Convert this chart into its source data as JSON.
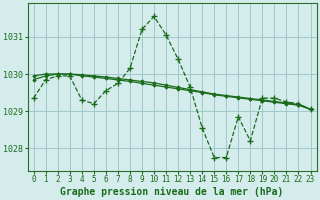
{
  "background_color": "#d4ecec",
  "grid_color": "#a0c8c8",
  "line_color": "#1a6b1a",
  "xlabel": "Graphe pression niveau de la mer (hPa)",
  "xlabel_fontsize": 7,
  "tick_fontsize": 6,
  "yticks": [
    1028,
    1029,
    1030,
    1031
  ],
  "ylim": [
    1027.4,
    1031.9
  ],
  "xlim": [
    -0.5,
    23.5
  ],
  "xticks": [
    0,
    1,
    2,
    3,
    4,
    5,
    6,
    7,
    8,
    9,
    10,
    11,
    12,
    13,
    14,
    15,
    16,
    17,
    18,
    19,
    20,
    21,
    22,
    23
  ],
  "line1_x": [
    0,
    1,
    2,
    3,
    4,
    5,
    6,
    7,
    8,
    9,
    10,
    11,
    12,
    13,
    14,
    15,
    16,
    17,
    18,
    19,
    20,
    21,
    22,
    23
  ],
  "line1_y": [
    1029.35,
    1029.85,
    1029.95,
    1029.95,
    1029.3,
    1029.2,
    1029.55,
    1029.75,
    1030.15,
    1031.2,
    1031.55,
    1031.05,
    1030.4,
    1029.65,
    1028.55,
    1027.75,
    1027.75,
    1028.85,
    1028.2,
    1029.35,
    1029.35,
    1029.25,
    1029.2,
    1029.05
  ],
  "line2_x": [
    0,
    1,
    2,
    3,
    4,
    5,
    6,
    7,
    8,
    9,
    10,
    11,
    12,
    13,
    14,
    15,
    16,
    17,
    18,
    19,
    20,
    21,
    22,
    23
  ],
  "line2_y": [
    1029.95,
    1030.0,
    1030.0,
    1030.0,
    1029.98,
    1029.95,
    1029.92,
    1029.88,
    1029.84,
    1029.8,
    1029.76,
    1029.7,
    1029.64,
    1029.58,
    1029.52,
    1029.46,
    1029.42,
    1029.38,
    1029.34,
    1029.3,
    1029.26,
    1029.22,
    1029.18,
    1029.05
  ],
  "line3_x": [
    0,
    1,
    2,
    3,
    4,
    5,
    6,
    7,
    8,
    9,
    10,
    11,
    12,
    13,
    14,
    15,
    16,
    17,
    18,
    19,
    20,
    21,
    22,
    23
  ],
  "line3_y": [
    1029.85,
    1029.95,
    1030.0,
    1030.0,
    1029.95,
    1029.92,
    1029.88,
    1029.84,
    1029.8,
    1029.75,
    1029.7,
    1029.65,
    1029.6,
    1029.55,
    1029.5,
    1029.44,
    1029.4,
    1029.36,
    1029.32,
    1029.28,
    1029.24,
    1029.2,
    1029.16,
    1029.05
  ]
}
